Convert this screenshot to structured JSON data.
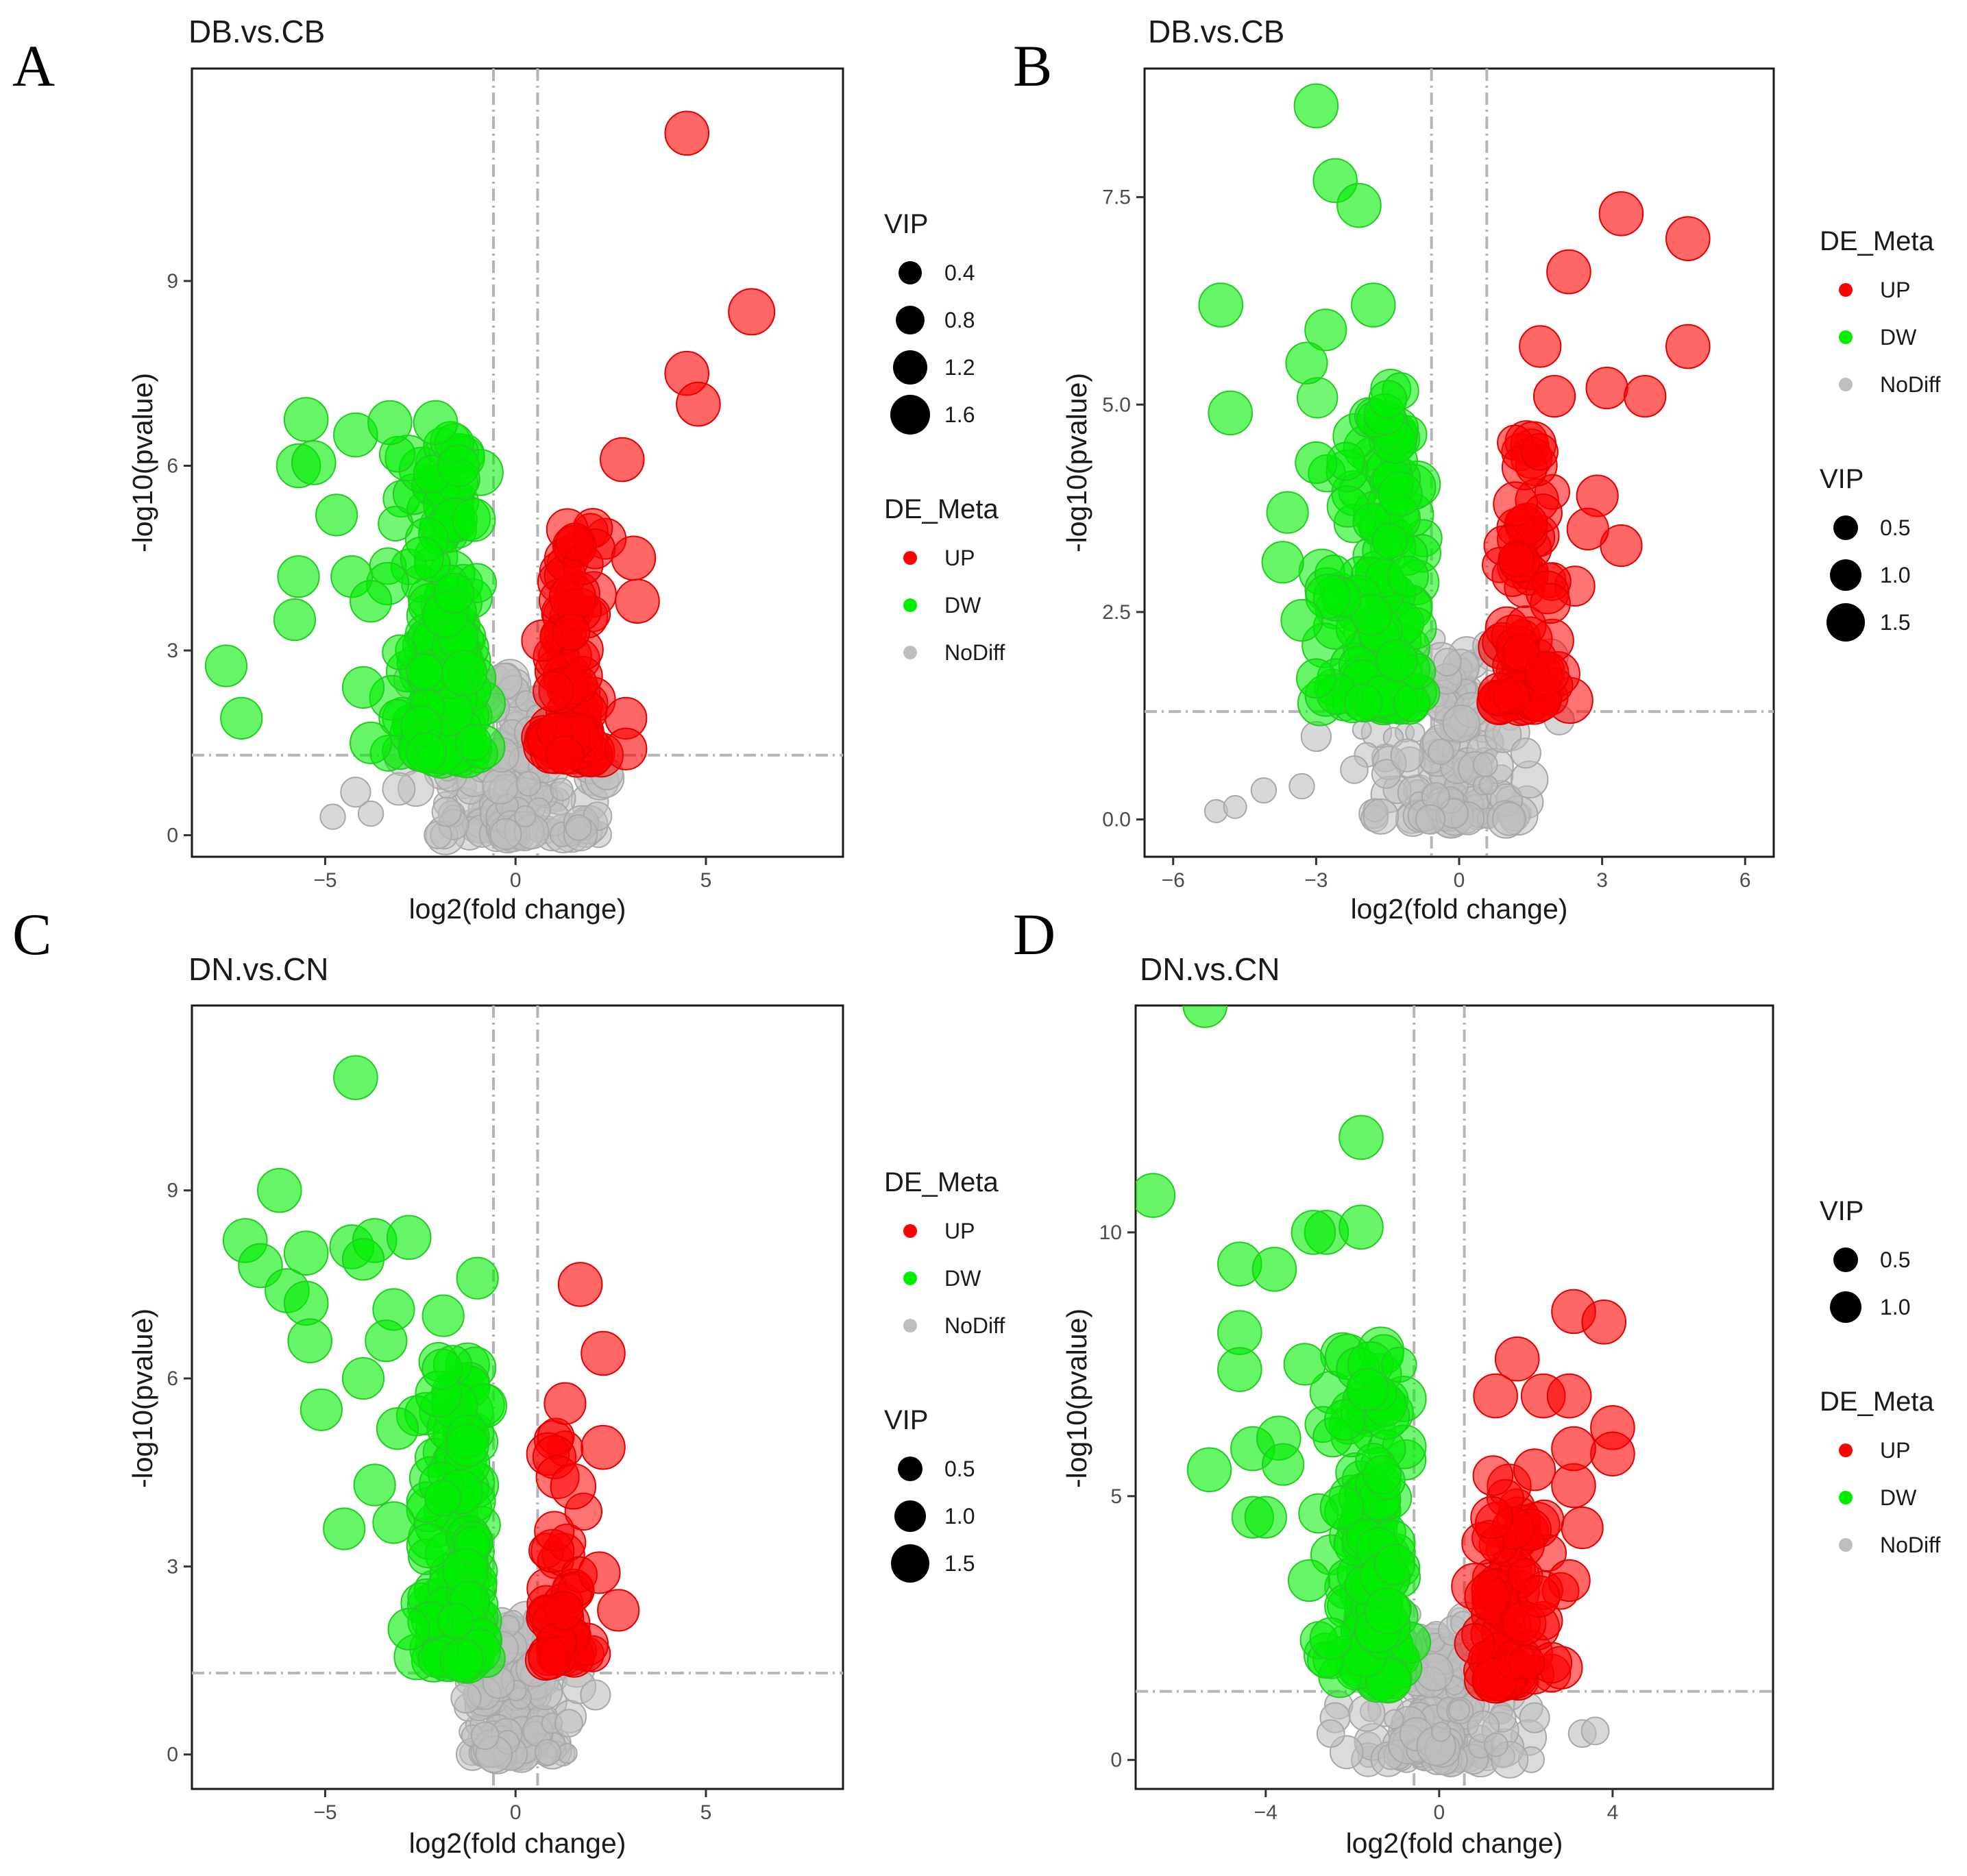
{
  "figure_letters": [
    "A",
    "B",
    "C",
    "D"
  ],
  "colors": {
    "up": "#ff0000",
    "dw": "#00ee00",
    "nodiff": "#bebebe",
    "ref_line": "#b5b5b5"
  },
  "chart_data": [
    {
      "panel": "A",
      "type": "scatter",
      "title": "DB.vs.CB",
      "xlabel": "log2(fold change)",
      "ylabel": "-log10(pvalue)",
      "xlim": [
        -8.5,
        8.6
      ],
      "ylim": [
        -0.35,
        12.45
      ],
      "xticks": [
        -5,
        0,
        5
      ],
      "xtick_labels": [
        "-5",
        "0",
        "5"
      ],
      "yticks": [
        0,
        3,
        6,
        9
      ],
      "ytick_labels": [
        "0",
        "3",
        "6",
        "9"
      ],
      "fc_threshold": [
        -0.58,
        0.58
      ],
      "p_threshold": 1.3,
      "legend_order": [
        "VIP",
        "DE_Meta"
      ],
      "vip_legend": {
        "title": "VIP",
        "labels": [
          "0.4",
          "0.8",
          "1.2",
          "1.6"
        ],
        "values": [
          0.4,
          0.8,
          1.2,
          1.6
        ]
      },
      "de_legend": {
        "title": "DE_Meta",
        "labels": [
          "UP",
          "DW",
          "NoDiff"
        ]
      },
      "seed": 11,
      "clusters": {
        "DW": {
          "n": 180,
          "x": [
            -3.6,
            -0.6
          ],
          "xc": -1.6,
          "y": [
            1.3,
            6.4
          ],
          "vip": [
            1.0,
            1.5
          ]
        },
        "UP": {
          "n": 90,
          "x": [
            0.6,
            2.6
          ],
          "xc": 1.3,
          "y": [
            1.3,
            5.0
          ],
          "vip": [
            1.0,
            1.5
          ]
        },
        "ND": {
          "n": 170,
          "x": [
            -3.2,
            2.8
          ],
          "xc": 0.0,
          "y": [
            0.0,
            2.6
          ],
          "vip": [
            0.3,
            1.2
          ]
        }
      },
      "highlights": {
        "DW": [
          [
            -7.6,
            2.75,
            1.3
          ],
          [
            -7.2,
            1.9,
            1.3
          ],
          [
            -5.5,
            6.75,
            1.4
          ],
          [
            -5.7,
            6.0,
            1.4
          ],
          [
            -5.3,
            6.05,
            1.4
          ],
          [
            -5.7,
            4.2,
            1.3
          ],
          [
            -4.7,
            5.2,
            1.3
          ],
          [
            -5.8,
            3.5,
            1.3
          ],
          [
            -4.2,
            6.5,
            1.4
          ],
          [
            -3.3,
            6.7,
            1.4
          ],
          [
            -2.1,
            6.7,
            1.4
          ],
          [
            -1.5,
            6.0,
            1.3
          ],
          [
            -4.3,
            4.2,
            1.3
          ],
          [
            -3.8,
            3.8,
            1.3
          ],
          [
            -4.0,
            2.4,
            1.3
          ],
          [
            -3.8,
            1.5,
            1.3
          ]
        ],
        "UP": [
          [
            4.5,
            11.4,
            1.4
          ],
          [
            6.2,
            8.5,
            1.5
          ],
          [
            4.5,
            7.5,
            1.4
          ],
          [
            4.8,
            7.0,
            1.4
          ],
          [
            2.8,
            6.1,
            1.4
          ],
          [
            3.1,
            4.5,
            1.4
          ],
          [
            3.2,
            3.8,
            1.4
          ],
          [
            2.9,
            1.9,
            1.3
          ],
          [
            2.9,
            1.4,
            1.3
          ]
        ],
        "ND": [
          [
            -4.8,
            0.3,
            0.6
          ],
          [
            -3.8,
            0.35,
            0.6
          ],
          [
            -4.2,
            0.7,
            0.8
          ],
          [
            2.4,
            1.0,
            0.9
          ],
          [
            1.6,
            1.4,
            0.8
          ]
        ]
      }
    },
    {
      "panel": "B",
      "type": "scatter",
      "title": "DB.vs.CB",
      "xlabel": "log2(fold change)",
      "ylabel": "-log10(pvalue)",
      "xlim": [
        -6.6,
        6.6
      ],
      "ylim": [
        -0.45,
        9.05
      ],
      "xticks": [
        -6,
        -3,
        0,
        3,
        6
      ],
      "xtick_labels": [
        "-6",
        "-3",
        "0",
        "3",
        "6"
      ],
      "yticks": [
        0,
        2.5,
        5,
        7.5
      ],
      "ytick_labels": [
        "0.0",
        "2.5",
        "5.0",
        "7.5"
      ],
      "fc_threshold": [
        -0.58,
        0.58
      ],
      "p_threshold": 1.3,
      "legend_order": [
        "DE_Meta",
        "VIP"
      ],
      "vip_legend": {
        "title": "VIP",
        "labels": [
          "0.5",
          "1.0",
          "1.5"
        ],
        "values": [
          0.5,
          1.0,
          1.5
        ]
      },
      "de_legend": {
        "title": "DE_Meta",
        "labels": [
          "UP",
          "DW",
          "NoDiff"
        ]
      },
      "seed": 23,
      "clusters": {
        "DW": {
          "n": 150,
          "x": [
            -3.2,
            -0.6
          ],
          "xc": -1.4,
          "y": [
            1.4,
            5.2
          ],
          "vip": [
            1.0,
            1.5
          ]
        },
        "UP": {
          "n": 80,
          "x": [
            0.6,
            2.6
          ],
          "xc": 1.2,
          "y": [
            1.4,
            4.6
          ],
          "vip": [
            1.0,
            1.5
          ]
        },
        "ND": {
          "n": 160,
          "x": [
            -2.5,
            2.2
          ],
          "xc": 0.0,
          "y": [
            0.0,
            2.2
          ],
          "vip": [
            0.3,
            1.2
          ]
        }
      },
      "highlights": {
        "DW": [
          [
            -3.0,
            8.6,
            1.4
          ],
          [
            -2.6,
            7.7,
            1.4
          ],
          [
            -2.1,
            7.4,
            1.4
          ],
          [
            -5.0,
            6.2,
            1.4
          ],
          [
            -4.8,
            4.9,
            1.4
          ],
          [
            -1.8,
            6.2,
            1.4
          ],
          [
            -2.8,
            5.9,
            1.3
          ],
          [
            -3.2,
            5.5,
            1.3
          ],
          [
            -3.6,
            3.7,
            1.3
          ],
          [
            -3.0,
            4.3,
            1.3
          ],
          [
            -3.7,
            3.1,
            1.3
          ],
          [
            -3.3,
            2.4,
            1.3
          ],
          [
            -3.0,
            1.7,
            1.2
          ]
        ],
        "UP": [
          [
            3.4,
            7.3,
            1.4
          ],
          [
            4.8,
            7.0,
            1.4
          ],
          [
            2.3,
            6.6,
            1.4
          ],
          [
            4.8,
            5.7,
            1.4
          ],
          [
            1.7,
            5.7,
            1.3
          ],
          [
            3.1,
            5.2,
            1.3
          ],
          [
            3.9,
            5.1,
            1.3
          ],
          [
            2.0,
            5.1,
            1.3
          ],
          [
            3.4,
            3.3,
            1.3
          ],
          [
            2.9,
            3.9,
            1.3
          ],
          [
            2.7,
            3.5,
            1.3
          ]
        ],
        "ND": [
          [
            -5.1,
            0.1,
            0.5
          ],
          [
            -4.7,
            0.15,
            0.5
          ],
          [
            -4.1,
            0.35,
            0.6
          ],
          [
            -3.3,
            0.4,
            0.6
          ],
          [
            -2.2,
            0.6,
            0.7
          ],
          [
            -3.0,
            1.0,
            0.8
          ],
          [
            2.1,
            1.2,
            0.8
          ],
          [
            1.4,
            0.8,
            0.8
          ]
        ]
      }
    },
    {
      "panel": "C",
      "type": "scatter",
      "title": "DN.vs.CN",
      "xlabel": "log2(fold change)",
      "ylabel": "-log10(pvalue)",
      "xlim": [
        -8.5,
        8.6
      ],
      "ylim": [
        -0.55,
        11.95
      ],
      "xticks": [
        -5,
        0,
        5
      ],
      "xtick_labels": [
        "-5",
        "0",
        "5"
      ],
      "yticks": [
        0,
        3,
        6,
        9
      ],
      "ytick_labels": [
        "0",
        "3",
        "6",
        "9"
      ],
      "fc_threshold": [
        -0.58,
        0.58
      ],
      "p_threshold": 1.3,
      "legend_order": [
        "DE_Meta",
        "VIP"
      ],
      "vip_legend": {
        "title": "VIP",
        "labels": [
          "0.5",
          "1.0",
          "1.5"
        ],
        "values": [
          0.5,
          1.0,
          1.5
        ]
      },
      "de_legend": {
        "title": "DE_Meta",
        "labels": [
          "UP",
          "DW",
          "NoDiff"
        ]
      },
      "seed": 37,
      "clusters": {
        "DW": {
          "n": 150,
          "x": [
            -2.8,
            -0.6
          ],
          "xc": -1.3,
          "y": [
            1.5,
            6.3
          ],
          "vip": [
            1.0,
            1.5
          ]
        },
        "UP": {
          "n": 50,
          "x": [
            0.6,
            2.2
          ],
          "xc": 1.0,
          "y": [
            1.5,
            5.3
          ],
          "vip": [
            1.0,
            1.5
          ]
        },
        "ND": {
          "n": 170,
          "x": [
            -1.6,
            1.8
          ],
          "xc": 0.0,
          "y": [
            0.0,
            2.2
          ],
          "vip": [
            0.3,
            1.2
          ]
        }
      },
      "highlights": {
        "DW": [
          [
            -4.2,
            10.8,
            1.4
          ],
          [
            -6.2,
            9.0,
            1.4
          ],
          [
            -7.1,
            8.2,
            1.4
          ],
          [
            -6.7,
            7.8,
            1.4
          ],
          [
            -5.5,
            8.0,
            1.4
          ],
          [
            -4.3,
            8.1,
            1.4
          ],
          [
            -3.7,
            8.2,
            1.4
          ],
          [
            -2.8,
            8.25,
            1.4
          ],
          [
            -4.0,
            7.9,
            1.3
          ],
          [
            -6.0,
            7.4,
            1.4
          ],
          [
            -5.5,
            7.2,
            1.4
          ],
          [
            -5.4,
            6.6,
            1.4
          ],
          [
            -3.2,
            7.1,
            1.3
          ],
          [
            -3.4,
            6.6,
            1.3
          ],
          [
            -4.0,
            6.0,
            1.3
          ],
          [
            -5.1,
            5.5,
            1.3
          ],
          [
            -3.1,
            5.2,
            1.3
          ],
          [
            -3.7,
            4.3,
            1.3
          ],
          [
            -4.5,
            3.6,
            1.3
          ],
          [
            -3.2,
            3.7,
            1.3
          ],
          [
            -2.8,
            2.0,
            1.3
          ],
          [
            -1.0,
            7.6,
            1.3
          ],
          [
            -1.9,
            7.0,
            1.3
          ]
        ],
        "UP": [
          [
            1.7,
            7.5,
            1.4
          ],
          [
            2.3,
            6.4,
            1.4
          ],
          [
            2.3,
            4.9,
            1.4
          ],
          [
            2.7,
            2.3,
            1.3
          ],
          [
            2.2,
            2.9,
            1.3
          ],
          [
            1.3,
            5.6,
            1.3
          ]
        ],
        "ND": [
          [
            2.1,
            0.95,
            0.8
          ],
          [
            1.4,
            0.5,
            0.7
          ],
          [
            -1.3,
            0.9,
            0.8
          ],
          [
            -0.8,
            0.3,
            0.7
          ]
        ]
      }
    },
    {
      "panel": "D",
      "type": "scatter",
      "title": "DN.vs.CN",
      "xlabel": "log2(fold change)",
      "ylabel": "-log10(pvalue)",
      "xlim": [
        -7.0,
        7.7
      ],
      "ylim": [
        -0.55,
        14.3
      ],
      "xticks": [
        -4,
        0,
        4
      ],
      "xtick_labels": [
        "-4",
        "0",
        "4"
      ],
      "yticks": [
        0,
        5,
        10
      ],
      "ytick_labels": [
        "0",
        "5",
        "10"
      ],
      "fc_threshold": [
        -0.58,
        0.58
      ],
      "p_threshold": 1.3,
      "legend_order": [
        "VIP",
        "DE_Meta"
      ],
      "vip_legend": {
        "title": "VIP",
        "labels": [
          "0.5",
          "1.0"
        ],
        "values": [
          0.5,
          1.0
        ]
      },
      "de_legend": {
        "title": "DE_Meta",
        "labels": [
          "UP",
          "DW",
          "NoDiff"
        ]
      },
      "seed": 53,
      "clusters": {
        "DW": {
          "n": 170,
          "x": [
            -3.0,
            -0.6
          ],
          "xc": -1.3,
          "y": [
            1.5,
            7.8
          ],
          "vip": [
            1.0,
            1.5
          ]
        },
        "UP": {
          "n": 80,
          "x": [
            0.6,
            3.4
          ],
          "xc": 1.2,
          "y": [
            1.5,
            5.5
          ],
          "vip": [
            1.0,
            1.5
          ]
        },
        "ND": {
          "n": 170,
          "x": [
            -2.4,
            2.2
          ],
          "xc": 0.0,
          "y": [
            0.0,
            2.8
          ],
          "vip": [
            0.3,
            1.2
          ]
        }
      },
      "highlights": {
        "DW": [
          [
            -5.4,
            14.3,
            1.4
          ],
          [
            -6.6,
            10.7,
            1.4
          ],
          [
            -1.8,
            11.8,
            1.4
          ],
          [
            -2.6,
            10.0,
            1.4
          ],
          [
            -2.9,
            10.0,
            1.4
          ],
          [
            -1.8,
            10.1,
            1.4
          ],
          [
            -4.6,
            9.4,
            1.4
          ],
          [
            -3.8,
            9.3,
            1.4
          ],
          [
            -4.6,
            8.1,
            1.4
          ],
          [
            -4.6,
            7.4,
            1.4
          ],
          [
            -5.3,
            5.5,
            1.4
          ],
          [
            -4.3,
            5.9,
            1.4
          ],
          [
            -3.7,
            6.1,
            1.4
          ],
          [
            -4.3,
            4.6,
            1.3
          ],
          [
            -4.0,
            4.6,
            1.3
          ],
          [
            -3.6,
            5.6,
            1.3
          ],
          [
            -3.1,
            7.5,
            1.3
          ],
          [
            -3.0,
            3.4,
            1.3
          ],
          [
            -2.5,
            2.3,
            1.3
          ]
        ],
        "UP": [
          [
            3.1,
            8.5,
            1.4
          ],
          [
            3.8,
            8.3,
            1.4
          ],
          [
            1.3,
            6.9,
            1.4
          ],
          [
            1.8,
            7.6,
            1.4
          ],
          [
            2.4,
            6.9,
            1.4
          ],
          [
            3.0,
            6.9,
            1.4
          ],
          [
            4.0,
            6.3,
            1.4
          ],
          [
            4.0,
            5.8,
            1.4
          ],
          [
            3.1,
            5.2,
            1.4
          ],
          [
            3.1,
            5.9,
            1.4
          ],
          [
            2.2,
            5.5,
            1.3
          ],
          [
            3.3,
            4.4,
            1.3
          ],
          [
            3.0,
            3.4,
            1.3
          ],
          [
            2.3,
            3.1,
            1.3
          ]
        ],
        "ND": [
          [
            3.3,
            0.5,
            0.7
          ],
          [
            3.6,
            0.55,
            0.7
          ],
          [
            2.2,
            0.8,
            0.8
          ],
          [
            -2.4,
            0.8,
            0.8
          ],
          [
            -2.5,
            0.5,
            0.7
          ]
        ]
      }
    }
  ]
}
